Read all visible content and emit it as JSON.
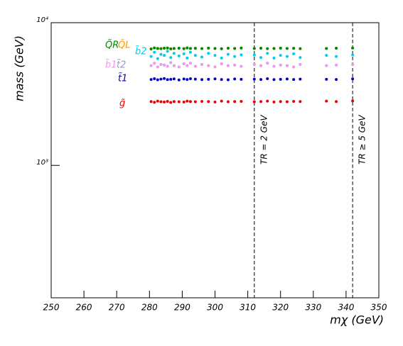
{
  "chart_data": {
    "type": "scatter",
    "log_y": true,
    "xlabel": "mχ (GeV)",
    "ylabel": "mass  (GeV)",
    "xlim": [
      250,
      350
    ],
    "ylim": [
      118,
      10000
    ],
    "xticks": [
      250,
      260,
      270,
      280,
      290,
      300,
      310,
      320,
      330,
      340,
      350
    ],
    "yticks": [
      {
        "value": 1000,
        "label": "10³"
      },
      {
        "value": 10000,
        "label": "10⁴"
      }
    ],
    "x": [
      280.5,
      281.5,
      282.5,
      283.5,
      284.5,
      285.5,
      286.5,
      287.5,
      289,
      290.5,
      291.5,
      292.5,
      294,
      296,
      298,
      300,
      302,
      304,
      306,
      308,
      312,
      314,
      316,
      318,
      320,
      322,
      324,
      326,
      334,
      337,
      342
    ],
    "series": [
      {
        "name": "Q̃L",
        "color": "#ff9900",
        "values": [
          6550,
          6650,
          6600,
          6580,
          6620,
          6640,
          6560,
          6600,
          6620,
          6580,
          6650,
          6600,
          6610,
          6590,
          6630,
          6600,
          6570,
          6620,
          6600,
          6640,
          6600,
          6620,
          6580,
          6600,
          6630,
          6600,
          6610,
          6580,
          6600,
          6620,
          6640
        ]
      },
      {
        "name": "Q̃R",
        "color": "#008800",
        "values": [
          6550,
          6650,
          6600,
          6580,
          6620,
          6640,
          6560,
          6600,
          6620,
          6580,
          6650,
          6600,
          6610,
          6590,
          6630,
          6600,
          6570,
          6620,
          6600,
          6640,
          6600,
          6620,
          6580,
          6600,
          6630,
          6600,
          6610,
          6580,
          6600,
          6620,
          6640
        ]
      },
      {
        "name": "b̃2",
        "color": "#00ccee",
        "values": [
          5800,
          6200,
          5600,
          6000,
          5900,
          6300,
          5700,
          6100,
          5850,
          6050,
          5650,
          6200,
          5900,
          5750,
          6100,
          5900,
          5650,
          6000,
          5800,
          5950,
          5950,
          5700,
          6100,
          5650,
          5900,
          5800,
          6050,
          5700,
          5900,
          5800,
          5950
        ]
      },
      {
        "name": "t̃2",
        "color": "#9999bb",
        "values": [
          5000,
          5200,
          4900,
          5100,
          5050,
          4950,
          5250,
          5000,
          4900,
          5150,
          5000,
          5200,
          4950,
          5100,
          5000,
          4900,
          5150,
          5000,
          5050,
          4950,
          5100,
          5000,
          5200,
          4950,
          5050,
          5000,
          4900,
          5100,
          5000,
          5050,
          5100
        ]
      },
      {
        "name": "b̃1",
        "color": "#ee99ee",
        "values": [
          5000,
          5200,
          4900,
          5100,
          5050,
          4950,
          5250,
          5000,
          4900,
          5150,
          5000,
          5200,
          4950,
          5100,
          5000,
          4900,
          5150,
          5000,
          5050,
          4950,
          5100,
          5000,
          5200,
          4950,
          5050,
          5000,
          4900,
          5100,
          5000,
          5050,
          5100
        ]
      },
      {
        "name": "t̃1",
        "color": "#0000cc",
        "values": [
          4000,
          4050,
          3980,
          4020,
          4060,
          3990,
          4010,
          4040,
          3970,
          4030,
          4000,
          4050,
          4020,
          3990,
          4010,
          4040,
          4000,
          3980,
          4030,
          4010,
          4020,
          4000,
          4050,
          3990,
          4010,
          4030,
          4000,
          4020,
          4010,
          4000,
          4040
        ]
      },
      {
        "name": "g̃",
        "color": "#ee0000",
        "values": [
          2800,
          2770,
          2820,
          2790,
          2780,
          2810,
          2760,
          2800,
          2790,
          2780,
          2820,
          2800,
          2790,
          2810,
          2800,
          2780,
          2820,
          2790,
          2800,
          2810,
          2790,
          2800,
          2820,
          2780,
          2800,
          2790,
          2810,
          2800,
          2820,
          2800,
          2830
        ]
      }
    ],
    "vlines": [
      {
        "x": 312,
        "label": "TR = 2 GeV"
      },
      {
        "x": 342,
        "label": "TR ≥ 5 GeV"
      }
    ]
  }
}
